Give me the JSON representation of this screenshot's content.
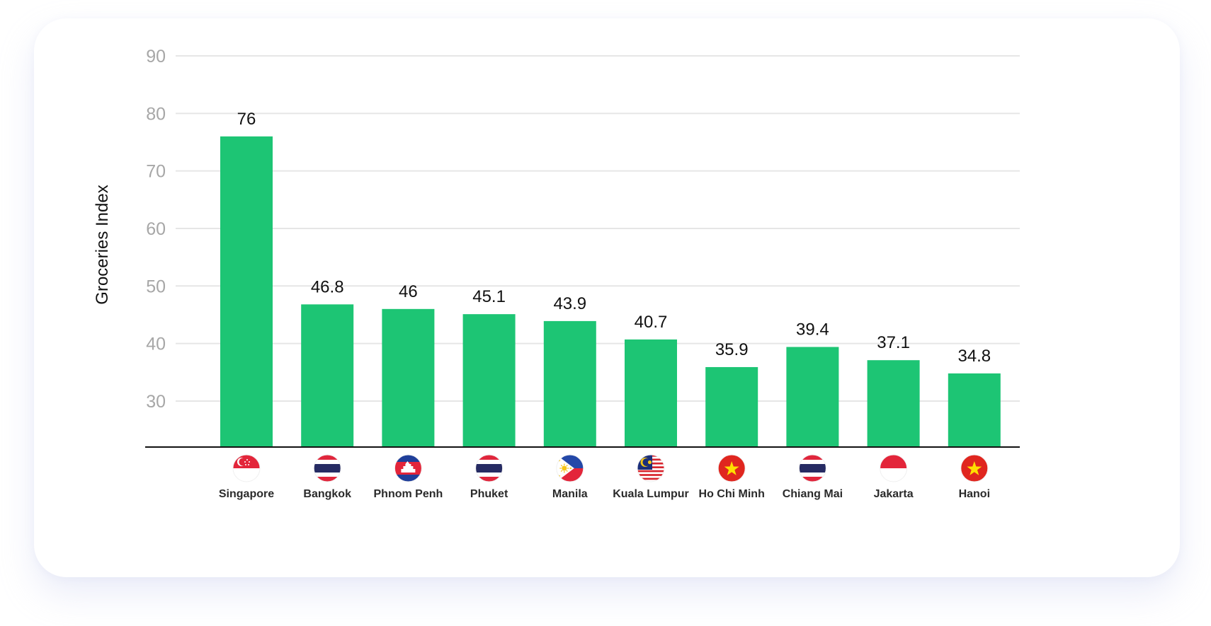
{
  "chart_data": {
    "type": "bar",
    "ylabel": "Groceries Index",
    "xlabel": "",
    "ylim": [
      22,
      90
    ],
    "yticks": [
      30,
      40,
      50,
      60,
      70,
      80,
      90
    ],
    "grid": true,
    "bar_color": "#1dc574",
    "categories": [
      "Singapore",
      "Bangkok",
      "Phnom Penh",
      "Phuket",
      "Manila",
      "Kuala Lumpur",
      "Ho Chi Minh",
      "Chiang Mai",
      "Jakarta",
      "Hanoi"
    ],
    "values": [
      76,
      46.8,
      46,
      45.1,
      43.9,
      40.7,
      35.9,
      39.4,
      37.1,
      34.8
    ],
    "value_labels": [
      "76",
      "46.8",
      "46",
      "45.1",
      "43.9",
      "40.7",
      "35.9",
      "39.4",
      "37.1",
      "34.8"
    ],
    "flags": [
      "singapore-flag-icon",
      "thailand-flag-icon",
      "cambodia-flag-icon",
      "thailand-flag-icon",
      "philippines-flag-icon",
      "malaysia-flag-icon",
      "vietnam-flag-icon",
      "thailand-flag-icon",
      "indonesia-flag-icon",
      "vietnam-flag-icon"
    ]
  }
}
